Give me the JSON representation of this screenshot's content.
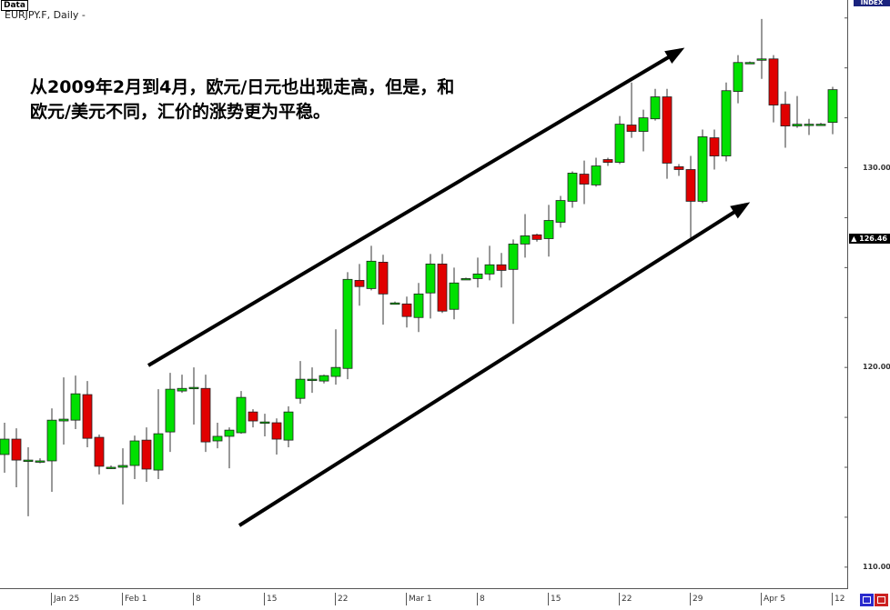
{
  "header": {
    "data_tab": "Data",
    "symbol": "EURJPY.F, Daily -",
    "index_tab": "INDEX"
  },
  "annotation": {
    "line1": "从2009年2月到4月，欧元/日元也出现走高，但是，和",
    "line2": "欧元/美元不同，汇价的涨势更为平稳。"
  },
  "colors": {
    "up": "#00e000",
    "down": "#e00000",
    "arrow": "#000000",
    "last_price_bg": "#000000",
    "index_tab": "#1a237e"
  },
  "buttons": [
    {
      "icon": "zoom-in-icon",
      "color": "#2a2acc"
    },
    {
      "icon": "zoom-out-icon",
      "color": "#cc2222"
    }
  ],
  "chart_data": {
    "type": "candlestick",
    "symbol": "EURJPY.F",
    "timeframe": "Daily",
    "ylim": [
      108.9,
      138.4
    ],
    "y_ticks": [
      "110.00",
      "120.00",
      "130.00"
    ],
    "y_tick_values": [
      110,
      120,
      130
    ],
    "last_price_label": "126.46",
    "last_price": 126.46,
    "x_ticks": [
      {
        "label": "Jan 25",
        "index": 4
      },
      {
        "label": "Feb 1",
        "index": 10
      },
      {
        "label": "8",
        "index": 16
      },
      {
        "label": "15",
        "index": 22
      },
      {
        "label": "22",
        "index": 28
      },
      {
        "label": "Mar 1",
        "index": 34
      },
      {
        "label": "8",
        "index": 40
      },
      {
        "label": "15",
        "index": 46
      },
      {
        "label": "22",
        "index": 52
      },
      {
        "label": "29",
        "index": 58
      },
      {
        "label": "Apr 5",
        "index": 64
      },
      {
        "label": "12",
        "index": 70
      }
    ],
    "ohlc_fields": [
      "open",
      "high",
      "low",
      "close"
    ],
    "candles": [
      [
        115.64,
        117.23,
        114.73,
        116.41
      ],
      [
        116.41,
        116.95,
        114.0,
        115.36
      ],
      [
        115.36,
        116.0,
        112.55,
        115.36
      ],
      [
        115.32,
        115.45,
        115.2,
        115.32
      ],
      [
        115.32,
        117.95,
        113.77,
        117.36
      ],
      [
        117.32,
        119.5,
        116.14,
        117.41
      ],
      [
        117.36,
        119.59,
        116.91,
        118.68
      ],
      [
        118.64,
        119.32,
        116.0,
        116.45
      ],
      [
        116.5,
        116.64,
        114.64,
        115.05
      ],
      [
        115.0,
        115.09,
        114.91,
        115.0
      ],
      [
        115.0,
        115.95,
        113.14,
        115.09
      ],
      [
        115.09,
        116.59,
        114.41,
        116.32
      ],
      [
        116.36,
        117.0,
        114.27,
        114.91
      ],
      [
        114.86,
        118.91,
        114.41,
        116.68
      ],
      [
        116.77,
        119.73,
        115.77,
        118.91
      ],
      [
        118.82,
        119.64,
        118.73,
        118.95
      ],
      [
        119.0,
        120.0,
        117.14,
        119.0
      ],
      [
        118.95,
        119.64,
        115.77,
        116.27
      ],
      [
        116.32,
        117.23,
        115.95,
        116.55
      ],
      [
        116.55,
        117.0,
        114.95,
        116.86
      ],
      [
        116.73,
        118.82,
        116.68,
        118.5
      ],
      [
        117.77,
        117.91,
        117.0,
        117.32
      ],
      [
        117.27,
        117.68,
        116.55,
        117.27
      ],
      [
        117.23,
        117.45,
        115.64,
        116.41
      ],
      [
        116.36,
        118.05,
        116.0,
        117.77
      ],
      [
        118.45,
        120.32,
        118.18,
        119.41
      ],
      [
        119.41,
        120.0,
        118.73,
        119.41
      ],
      [
        119.32,
        119.64,
        119.2,
        119.59
      ],
      [
        119.55,
        121.91,
        119.14,
        120.0
      ],
      [
        119.95,
        124.77,
        119.41,
        124.41
      ],
      [
        124.36,
        125.18,
        123.09,
        124.05
      ],
      [
        123.95,
        126.09,
        123.86,
        125.32
      ],
      [
        125.27,
        125.64,
        122.14,
        123.68
      ],
      [
        123.23,
        123.3,
        123.2,
        123.23
      ],
      [
        123.18,
        123.55,
        122.0,
        122.55
      ],
      [
        122.5,
        124.23,
        121.77,
        123.68
      ],
      [
        123.73,
        125.68,
        122.45,
        125.18
      ],
      [
        125.18,
        125.68,
        122.73,
        122.82
      ],
      [
        122.91,
        125.0,
        122.41,
        124.23
      ],
      [
        124.45,
        124.5,
        124.4,
        124.45
      ],
      [
        124.45,
        125.5,
        124.0,
        124.68
      ],
      [
        124.68,
        126.09,
        124.36,
        125.14
      ],
      [
        125.14,
        125.73,
        124.0,
        124.86
      ],
      [
        124.91,
        126.41,
        122.18,
        126.18
      ],
      [
        126.18,
        127.68,
        125.5,
        126.59
      ],
      [
        126.64,
        126.7,
        126.3,
        126.41
      ],
      [
        126.45,
        128.14,
        125.55,
        127.36
      ],
      [
        127.27,
        128.59,
        127.0,
        128.36
      ],
      [
        128.32,
        129.82,
        128.0,
        129.73
      ],
      [
        129.68,
        130.36,
        128.18,
        129.18
      ],
      [
        129.14,
        130.5,
        129.05,
        130.09
      ],
      [
        130.41,
        130.5,
        130.09,
        130.27
      ],
      [
        130.27,
        132.59,
        130.18,
        132.18
      ],
      [
        132.14,
        134.27,
        131.5,
        131.82
      ],
      [
        131.82,
        132.91,
        130.82,
        132.5
      ],
      [
        132.45,
        133.95,
        132.36,
        133.55
      ],
      [
        133.55,
        133.95,
        129.45,
        130.23
      ],
      [
        130.05,
        130.18,
        129.59,
        129.91
      ],
      [
        129.91,
        130.59,
        126.45,
        128.32
      ],
      [
        128.32,
        131.91,
        128.23,
        131.55
      ],
      [
        131.5,
        131.91,
        129.91,
        130.59
      ],
      [
        130.59,
        134.27,
        130.32,
        133.86
      ],
      [
        133.82,
        135.64,
        133.23,
        135.27
      ],
      [
        135.27,
        135.32,
        135.22,
        135.27
      ],
      [
        135.45,
        137.45,
        134.45,
        135.45
      ],
      [
        135.45,
        135.64,
        132.27,
        133.14
      ],
      [
        133.18,
        133.82,
        131.0,
        132.09
      ],
      [
        132.09,
        133.59,
        132.0,
        132.18
      ],
      [
        132.18,
        132.45,
        131.64,
        132.18
      ],
      [
        132.18,
        132.25,
        132.1,
        132.18
      ],
      [
        132.27,
        134.05,
        131.68,
        133.91
      ]
    ]
  }
}
